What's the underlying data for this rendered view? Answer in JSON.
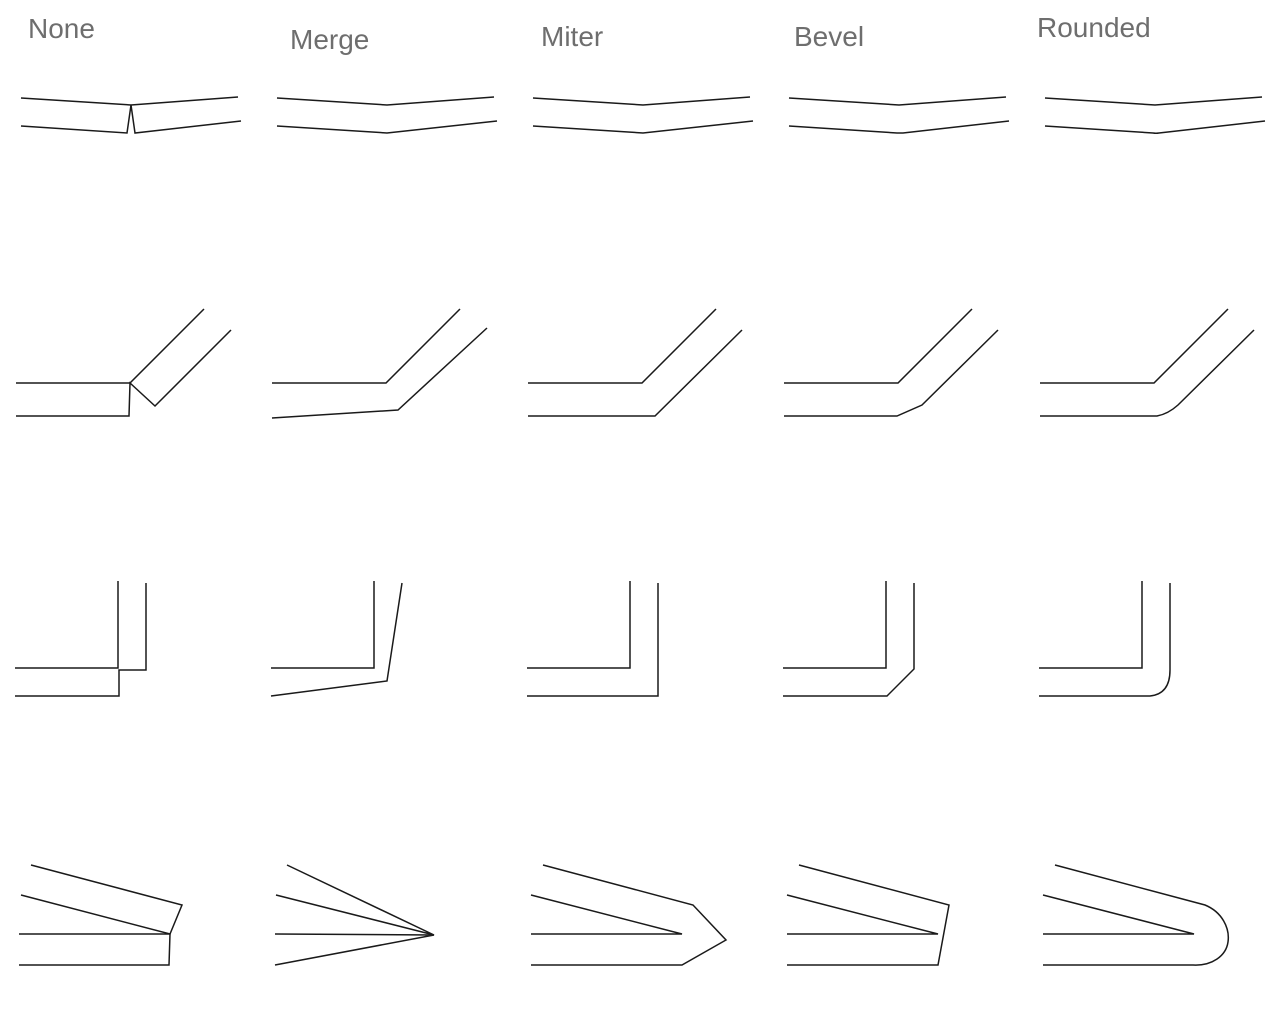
{
  "headers": [
    "None",
    "Merge",
    "Miter",
    "Bevel",
    "Rounded"
  ]
}
